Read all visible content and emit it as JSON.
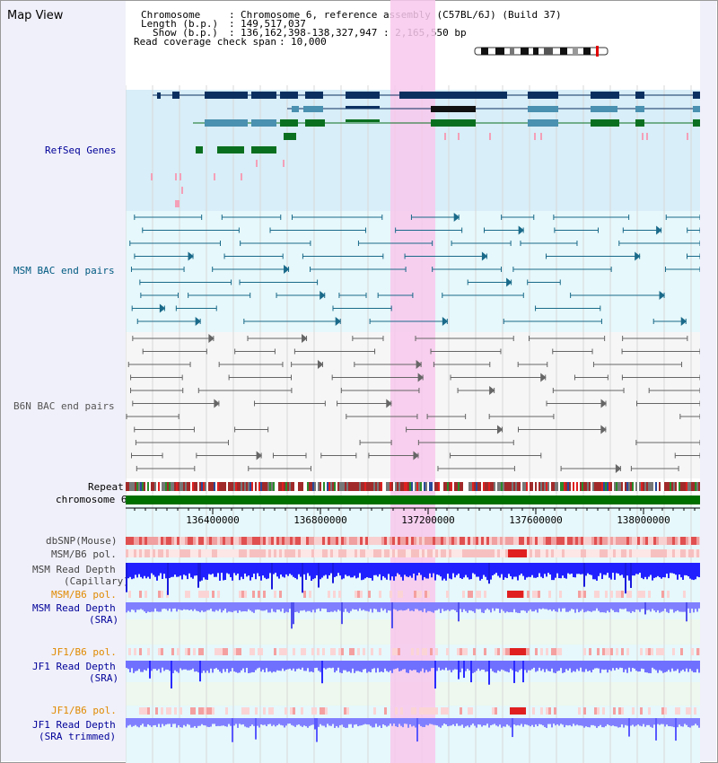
{
  "title": "Map View",
  "info": {
    "chromosome_label": "Chromosome",
    "chromosome_value": "Chromosome 6, reference assembly (C57BL/6J) (Build 37)",
    "length_label": "Length (b.p.)",
    "length_value": "149,517,037",
    "show_label": "Show (b.p.)",
    "show_value": "136,162,398-138,327,947 : 2,165,550 bp",
    "coverage_label": "Read coverage check span",
    "coverage_value": "10,000"
  },
  "tracks": {
    "refseq": "RefSeq Genes",
    "msm_bac": "MSM BAC end pairs",
    "b6n_bac": "B6N BAC end pairs",
    "repeat": "Repeat",
    "chromosome": "chromosome 6",
    "dbsnp": "dbSNP(Mouse)",
    "msm_b6_pol": "MSM/B6 pol.",
    "msm_read_depth_cap_1": "MSM Read Depth",
    "msm_read_depth_cap_2": "(Capillary)",
    "msm_b6_pol_2": "MSM/B6 pol.",
    "msm_read_depth_sra_1": "MSM Read Depth",
    "msm_read_depth_sra_2": "(SRA)",
    "jf1_b6_pol": "JF1/B6 pol.",
    "jf1_read_depth_sra_1": "JF1 Read Depth",
    "jf1_read_depth_sra_2": "(SRA)",
    "jf1_b6_pol_2": "JF1/B6 pol.",
    "jf1_read_depth_trim_1": "JF1 Read Depth",
    "jf1_read_depth_trim_2": "(SRA trimmed)"
  },
  "axis": {
    "ticks": [
      "136400000",
      "136800000",
      "137200000",
      "137600000",
      "138000000"
    ]
  },
  "colors": {
    "refseq_bg": "#d8eef8",
    "msm_bg": "#e6f8fb",
    "b6n_bg": "#f6f6f6",
    "gene_navy": "#0b3060",
    "gene_teal": "#4a90b0",
    "gene_green": "#0a7020",
    "highlight": "#f8c8ec",
    "msm_label": "#005a80",
    "refseq_label": "#000099",
    "jf1_label": "#000099",
    "pol_label": "#e08a00",
    "depth_blue": "#2a2aff",
    "depth_light": "#8080ff"
  }
}
